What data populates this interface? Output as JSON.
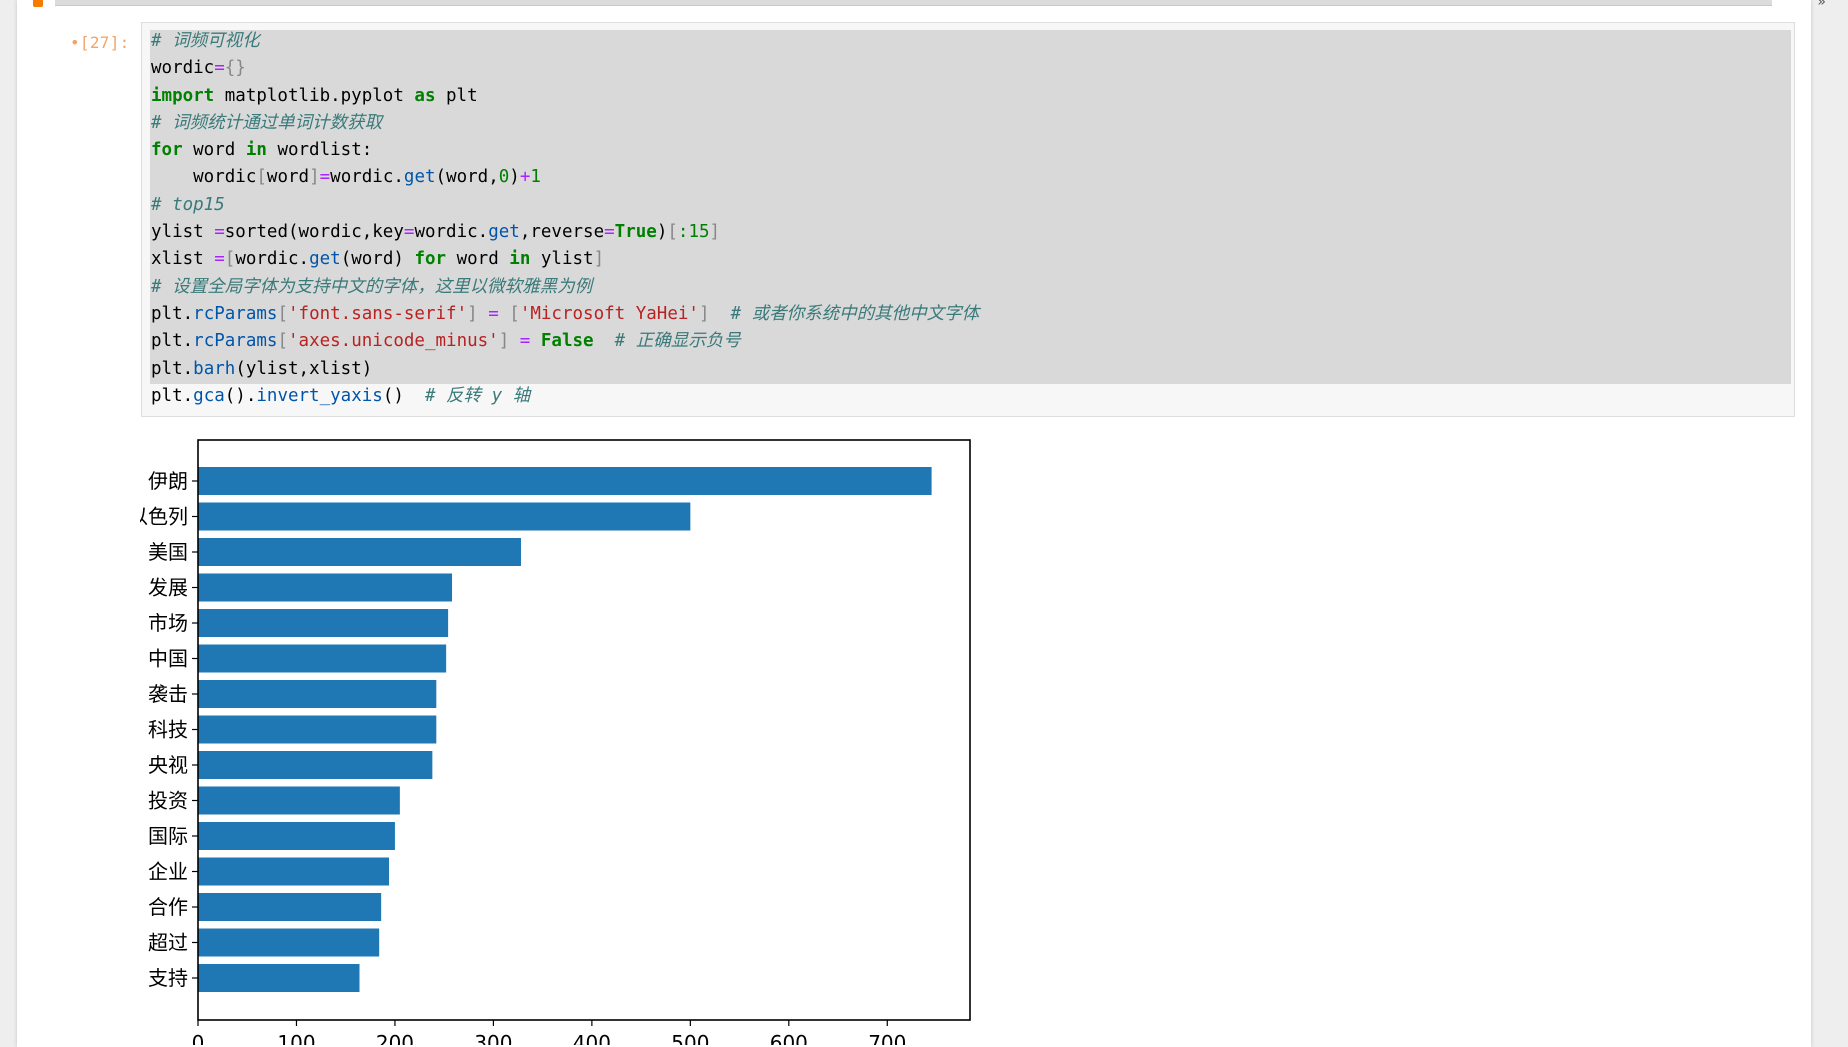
{
  "cell": {
    "prompt": "•[27]:",
    "code_lines": [
      [
        {
          "t": "# 词频可视化",
          "c": "cm"
        }
      ],
      [
        {
          "t": "wordic",
          "c": ""
        },
        {
          "t": "=",
          "c": "op"
        },
        {
          "t": "{}",
          "c": "br"
        }
      ],
      [
        {
          "t": "import",
          "c": "kw"
        },
        {
          "t": " matplotlib.pyplot ",
          "c": ""
        },
        {
          "t": "as",
          "c": "kw"
        },
        {
          "t": " plt",
          "c": ""
        }
      ],
      [
        {
          "t": "# 词频统计通过单词计数获取",
          "c": "cm"
        }
      ],
      [
        {
          "t": "for",
          "c": "kw"
        },
        {
          "t": " word ",
          "c": ""
        },
        {
          "t": "in",
          "c": "kw"
        },
        {
          "t": " wordlist:",
          "c": ""
        }
      ],
      [
        {
          "t": "    wordic",
          "c": ""
        },
        {
          "t": "[",
          "c": "br"
        },
        {
          "t": "word",
          "c": ""
        },
        {
          "t": "]",
          "c": "br"
        },
        {
          "t": "=",
          "c": "op"
        },
        {
          "t": "wordic.",
          "c": ""
        },
        {
          "t": "get",
          "c": "fn"
        },
        {
          "t": "(word,",
          "c": ""
        },
        {
          "t": "0",
          "c": "num"
        },
        {
          "t": ")",
          "c": ""
        },
        {
          "t": "+",
          "c": "op"
        },
        {
          "t": "1",
          "c": "num"
        }
      ],
      [
        {
          "t": "# top15",
          "c": "cm"
        }
      ],
      [
        {
          "t": "ylist ",
          "c": ""
        },
        {
          "t": "=",
          "c": "op"
        },
        {
          "t": "sorted(wordic,key",
          "c": ""
        },
        {
          "t": "=",
          "c": "op"
        },
        {
          "t": "wordic.",
          "c": ""
        },
        {
          "t": "get",
          "c": "fn"
        },
        {
          "t": ",reverse",
          "c": ""
        },
        {
          "t": "=",
          "c": "op"
        },
        {
          "t": "True",
          "c": "kw"
        },
        {
          "t": ")",
          "c": ""
        },
        {
          "t": "[",
          "c": "br"
        },
        {
          "t": ":15",
          "c": "num"
        },
        {
          "t": "]",
          "c": "br"
        }
      ],
      [
        {
          "t": "xlist ",
          "c": ""
        },
        {
          "t": "=",
          "c": "op"
        },
        {
          "t": "[",
          "c": "br"
        },
        {
          "t": "wordic.",
          "c": ""
        },
        {
          "t": "get",
          "c": "fn"
        },
        {
          "t": "(word) ",
          "c": ""
        },
        {
          "t": "for",
          "c": "kw"
        },
        {
          "t": " word ",
          "c": ""
        },
        {
          "t": "in",
          "c": "kw"
        },
        {
          "t": " ylist",
          "c": ""
        },
        {
          "t": "]",
          "c": "br"
        }
      ],
      [
        {
          "t": "# 设置全局字体为支持中文的字体，这里以微软雅黑为例",
          "c": "cm"
        }
      ],
      [
        {
          "t": "plt.",
          "c": ""
        },
        {
          "t": "rcParams",
          "c": "fn"
        },
        {
          "t": "[",
          "c": "br"
        },
        {
          "t": "'font.sans-serif'",
          "c": "str"
        },
        {
          "t": "]",
          "c": "br"
        },
        {
          "t": " = ",
          "c": "op"
        },
        {
          "t": "[",
          "c": "br"
        },
        {
          "t": "'Microsoft YaHei'",
          "c": "str"
        },
        {
          "t": "]",
          "c": "br"
        },
        {
          "t": "  # 或者你系统中的其他中文字体",
          "c": "cm"
        }
      ],
      [
        {
          "t": "plt.",
          "c": ""
        },
        {
          "t": "rcParams",
          "c": "fn"
        },
        {
          "t": "[",
          "c": "br"
        },
        {
          "t": "'axes.unicode_minus'",
          "c": "str"
        },
        {
          "t": "]",
          "c": "br"
        },
        {
          "t": " = ",
          "c": "op"
        },
        {
          "t": "False",
          "c": "kw"
        },
        {
          "t": "  # 正确显示负号",
          "c": "cm"
        }
      ],
      [
        {
          "t": "plt.",
          "c": ""
        },
        {
          "t": "barh",
          "c": "fn"
        },
        {
          "t": "(ylist,xlist)",
          "c": ""
        }
      ],
      [
        {
          "t": "plt.",
          "c": ""
        },
        {
          "t": "gca",
          "c": "fn"
        },
        {
          "t": "().",
          "c": ""
        },
        {
          "t": "invert_yaxis",
          "c": "fn"
        },
        {
          "t": "()  ",
          "c": ""
        },
        {
          "t": "# 反转 y 轴",
          "c": "cm"
        }
      ]
    ]
  },
  "chart_data": {
    "type": "bar",
    "orientation": "horizontal",
    "categories": [
      "伊朗",
      "以色列",
      "美国",
      "发展",
      "市场",
      "中国",
      "袭击",
      "科技",
      "央视",
      "投资",
      "国际",
      "企业",
      "合作",
      "超过",
      "支持"
    ],
    "values": [
      745,
      500,
      328,
      258,
      254,
      252,
      242,
      242,
      238,
      205,
      200,
      194,
      186,
      184,
      164
    ],
    "xlim": [
      0,
      784
    ],
    "xticks": [
      0,
      100,
      200,
      300,
      400,
      500,
      600,
      700
    ],
    "bar_color": "#1f77b4",
    "grid": false,
    "title": "",
    "xlabel": "",
    "ylabel": ""
  },
  "colors": {
    "prompt": "#f0a56a",
    "code_background": "#d9d9d9",
    "accent_orange": "#f57c00"
  }
}
